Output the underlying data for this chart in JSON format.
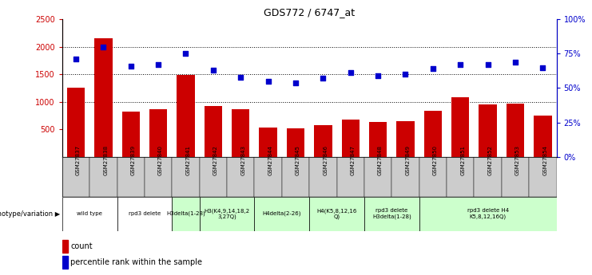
{
  "title": "GDS772 / 6747_at",
  "samples": [
    "GSM27837",
    "GSM27838",
    "GSM27839",
    "GSM27840",
    "GSM27841",
    "GSM27842",
    "GSM27843",
    "GSM27844",
    "GSM27845",
    "GSM27846",
    "GSM27847",
    "GSM27848",
    "GSM27849",
    "GSM27850",
    "GSM27851",
    "GSM27852",
    "GSM27853",
    "GSM27854"
  ],
  "counts": [
    1250,
    2150,
    820,
    860,
    1490,
    920,
    860,
    530,
    510,
    575,
    680,
    635,
    645,
    835,
    1080,
    950,
    960,
    755
  ],
  "percentiles": [
    71,
    80,
    66,
    67,
    75,
    63,
    58,
    55,
    54,
    57,
    61,
    59,
    60,
    64,
    67,
    67,
    69,
    65
  ],
  "ylim_left": [
    0,
    2500
  ],
  "ylim_right": [
    0,
    100
  ],
  "yticks_left": [
    500,
    1000,
    1500,
    2000,
    2500
  ],
  "ytick_labels_left": [
    "500",
    "1000",
    "1500",
    "2000",
    "2500"
  ],
  "yticks_right": [
    0,
    25,
    50,
    75,
    100
  ],
  "ytick_labels_right": [
    "0%",
    "25%",
    "50%",
    "75%",
    "100%"
  ],
  "bar_color": "#cc0000",
  "scatter_color": "#0000cc",
  "background_color": "#ffffff",
  "plot_bg_color": "#ffffff",
  "sample_row_color": "#cccccc",
  "groups": [
    {
      "label": "wild type",
      "start": 0,
      "end": 2,
      "color": "#ffffff"
    },
    {
      "label": "rpd3 delete",
      "start": 2,
      "end": 4,
      "color": "#ffffff"
    },
    {
      "label": "H3delta(1-28)",
      "start": 4,
      "end": 5,
      "color": "#ccffcc"
    },
    {
      "label": "H3(K4,9,14,18,2\n3,27Q)",
      "start": 5,
      "end": 7,
      "color": "#ccffcc"
    },
    {
      "label": "H4delta(2-26)",
      "start": 7,
      "end": 9,
      "color": "#ccffcc"
    },
    {
      "label": "H4(K5,8,12,16\nQ)",
      "start": 9,
      "end": 11,
      "color": "#ccffcc"
    },
    {
      "label": "rpd3 delete\nH3delta(1-28)",
      "start": 11,
      "end": 13,
      "color": "#ccffcc"
    },
    {
      "label": "rpd3 delete H4\nK5,8,12,16Q)",
      "start": 13,
      "end": 18,
      "color": "#ccffcc"
    }
  ],
  "genotype_label": "genotype/variation",
  "legend_count_label": "count",
  "legend_percentile_label": "percentile rank within the sample"
}
